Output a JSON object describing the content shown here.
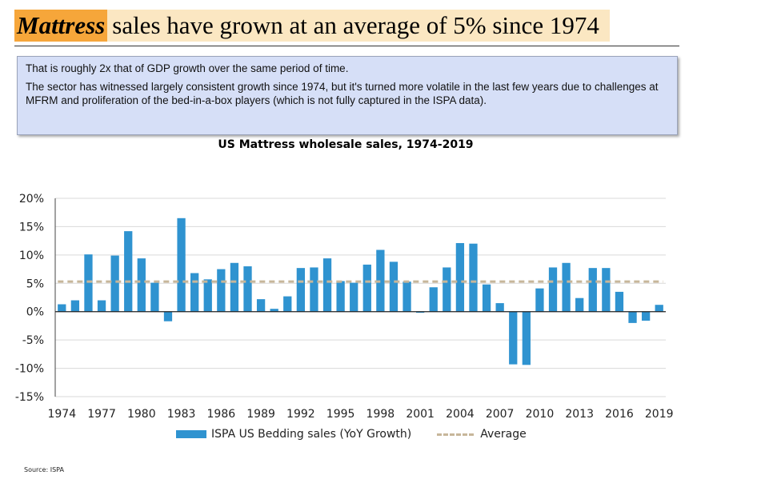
{
  "header": {
    "headline_highlight": "Mattress",
    "headline_rest": "sales have grown at an average of 5% since 1974"
  },
  "note": {
    "line1": "That is roughly 2x that of GDP growth over the same period of time.",
    "line2": "The sector has witnessed largely consistent growth since 1974, but it's turned more volatile in the last few years due to challenges at MFRM and proliferation of the bed-in-a-box players (which is not fully captured in the ISPA data)."
  },
  "source": "Source: ISPA",
  "chart_data": {
    "type": "bar",
    "title": "US Mattress wholesale sales, 1974-2019",
    "xlabel": "",
    "ylabel": "",
    "ylim": [
      -15,
      20
    ],
    "yticks": [
      20,
      15,
      10,
      5,
      0,
      -5,
      -10,
      -15
    ],
    "ytick_labels": [
      "20%",
      "15%",
      "10%",
      "5%",
      "0%",
      "-5%",
      "-10%",
      "-15%"
    ],
    "xtick_labels": [
      "1974",
      "1977",
      "1980",
      "1983",
      "1986",
      "1989",
      "1992",
      "1995",
      "1998",
      "2001",
      "2004",
      "2007",
      "2010",
      "2013",
      "2016",
      "2019"
    ],
    "grid": true,
    "legend_position": "bottom",
    "categories": [
      "1974",
      "1975",
      "1976",
      "1977",
      "1978",
      "1979",
      "1980",
      "1981",
      "1982",
      "1983",
      "1984",
      "1985",
      "1986",
      "1987",
      "1988",
      "1989",
      "1990",
      "1991",
      "1992",
      "1993",
      "1994",
      "1995",
      "1996",
      "1997",
      "1998",
      "1999",
      "2000",
      "2001",
      "2002",
      "2003",
      "2004",
      "2005",
      "2006",
      "2007",
      "2008",
      "2009",
      "2010",
      "2011",
      "2012",
      "2013",
      "2014",
      "2015",
      "2016",
      "2017",
      "2018",
      "2019"
    ],
    "series": [
      {
        "name": "ISPA US Bedding sales (YoY Growth)",
        "kind": "bar",
        "color": "#2f93d0",
        "values": [
          1.3,
          2.0,
          10.1,
          2.0,
          9.9,
          14.2,
          9.4,
          5.1,
          -1.7,
          16.5,
          6.8,
          5.7,
          7.5,
          8.6,
          8.0,
          2.2,
          0.5,
          2.7,
          7.7,
          7.8,
          9.4,
          5.4,
          5.1,
          8.3,
          10.9,
          8.8,
          5.3,
          -0.2,
          4.3,
          7.8,
          12.1,
          12.0,
          4.8,
          1.5,
          -9.3,
          -9.4,
          4.1,
          7.8,
          8.6,
          2.4,
          7.7,
          7.7,
          3.5,
          -2.0,
          -1.6,
          1.2
        ]
      },
      {
        "name": "Average",
        "kind": "line",
        "color": "#c7b69a",
        "value": 5.3
      }
    ]
  }
}
